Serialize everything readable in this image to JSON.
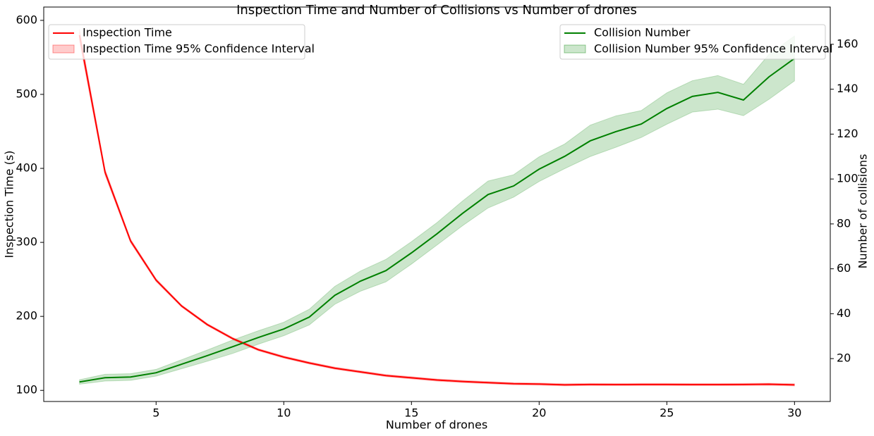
{
  "chart_data": {
    "type": "line",
    "title": "Inspection Time and Number of Collisions vs Number of drones",
    "x_label": "Number of drones",
    "y_label": "Inspection Time (s)",
    "y2_label": "Number of collisions",
    "x": [
      2,
      3,
      4,
      5,
      6,
      7,
      8,
      9,
      10,
      11,
      12,
      13,
      14,
      15,
      16,
      17,
      18,
      19,
      20,
      21,
      22,
      23,
      24,
      25,
      26,
      27,
      28,
      29,
      30
    ],
    "xlim": [
      0.6,
      31.4
    ],
    "xticks": [
      5,
      10,
      15,
      20,
      25,
      30
    ],
    "ylim": [
      85,
      618
    ],
    "yticks": [
      100,
      200,
      300,
      400,
      500,
      600
    ],
    "y2lim": [
      0.9,
      176.6
    ],
    "y2ticks": [
      20,
      40,
      60,
      80,
      100,
      120,
      140,
      160
    ],
    "grid": false,
    "series": [
      {
        "name": "Inspection Time",
        "color": "#ff0000",
        "axis": "y",
        "legend": "upper left",
        "values": [
          580,
          395,
          302,
          249,
          214,
          189,
          170,
          155,
          145,
          137,
          130,
          125,
          120,
          117,
          114,
          112,
          110.5,
          109,
          108.5,
          107.5,
          108,
          107.8,
          108,
          108,
          107.8,
          107.8,
          108,
          108.3,
          107.5
        ],
        "band": {
          "name": "Inspection Time 95% Confidence Interval",
          "color": "#ff0000",
          "upper": [
            588,
            399,
            304.5,
            251,
            215.5,
            190.5,
            171.5,
            156.5,
            146.5,
            138.5,
            131.5,
            126.5,
            121.5,
            118.5,
            115.5,
            113.5,
            112,
            110.5,
            110,
            109,
            109.5,
            109.3,
            109.5,
            109.5,
            109.3,
            109.3,
            109.5,
            109.8,
            109
          ],
          "lower": [
            572,
            391,
            299.5,
            247,
            212.5,
            187.5,
            168.5,
            153.5,
            143.5,
            135.5,
            128.5,
            123.5,
            118.5,
            115.5,
            112.5,
            110.5,
            109,
            107.5,
            107,
            106,
            106.5,
            106.3,
            106.5,
            106.5,
            106.3,
            106.3,
            106.5,
            106.8,
            106
          ]
        }
      },
      {
        "name": "Collision Number",
        "color": "#008000",
        "axis": "y2",
        "legend": "upper right",
        "values": [
          9.6,
          11.5,
          11.8,
          13.7,
          17.5,
          21.3,
          25.3,
          29.4,
          33.2,
          38.5,
          48.2,
          54.5,
          59.2,
          67.1,
          75.6,
          84.7,
          93.1,
          96.9,
          104.4,
          110.1,
          117,
          121.1,
          124.5,
          131.4,
          136.8,
          138.6,
          135.2,
          145.5,
          153.7
        ],
        "band": {
          "name": "Collision Number 95% Confidence Interval",
          "color": "#008000",
          "upper": [
            10.6,
            13,
            13.3,
            15.2,
            19.5,
            23.8,
            28.3,
            32.4,
            36.2,
            42,
            52.2,
            59,
            64.2,
            72.1,
            80.6,
            90.2,
            99.1,
            101.9,
            109.9,
            115.6,
            124,
            128.1,
            130.5,
            138.4,
            143.8,
            146.1,
            142.2,
            155.5,
            163.7
          ],
          "lower": [
            8.6,
            10,
            10.3,
            12.2,
            15.5,
            18.8,
            22.3,
            26.4,
            30.2,
            35,
            44.2,
            50,
            54.2,
            62.1,
            70.6,
            79.2,
            87.1,
            91.9,
            98.9,
            104.6,
            110,
            114.1,
            118.5,
            124.4,
            129.8,
            131.1,
            128.2,
            135.5,
            143.7
          ]
        }
      }
    ]
  }
}
